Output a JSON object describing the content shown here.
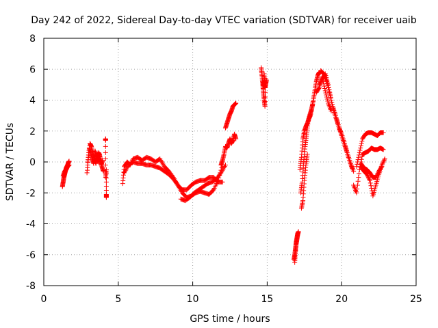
{
  "chart_data": {
    "type": "scatter",
    "title": "Day 242 of 2022, Sidereal Day-to-day VTEC variation (SDTVAR) for receiver uaib",
    "xlabel": "GPS time / hours",
    "ylabel": "SDTVAR / TECUs",
    "xlim": [
      0,
      25
    ],
    "ylim": [
      -8,
      8
    ],
    "xticks": [
      "0",
      "5",
      "10",
      "15",
      "20",
      "25"
    ],
    "yticks": [
      "8",
      "6",
      "4",
      "2",
      "0",
      "-2",
      "-4",
      "-6",
      "-8"
    ],
    "grid": true,
    "marker": "+",
    "series": [
      {
        "name": "SDTVAR",
        "color": "#ff0000",
        "segments": [
          {
            "x": [
              1.25,
              1.3,
              1.35,
              1.4,
              1.45,
              1.5,
              1.55,
              1.6,
              1.65,
              1.7
            ],
            "y": [
              -1.6,
              -1.3,
              -1.0,
              -0.8,
              -0.6,
              -0.4,
              -0.3,
              -0.2,
              -0.05,
              0.05
            ]
          },
          {
            "x": [
              1.3,
              1.4,
              1.5,
              1.6,
              1.7
            ],
            "y": [
              -0.9,
              -0.6,
              -0.5,
              -0.3,
              -0.2
            ]
          },
          {
            "x": [
              2.9,
              3.0,
              3.1,
              3.2,
              3.3,
              3.4,
              3.5,
              3.6,
              3.7,
              3.8,
              3.9,
              4.0
            ],
            "y": [
              -0.7,
              0.3,
              1.2,
              1.0,
              0.5,
              0.2,
              -0.1,
              0.4,
              0.6,
              0.2,
              -0.3,
              -0.6
            ]
          },
          {
            "x": [
              2.95,
              3.05,
              3.15,
              3.25,
              3.35,
              3.45,
              3.55,
              3.65,
              3.75,
              3.85,
              3.95
            ],
            "y": [
              0.0,
              0.9,
              0.6,
              0.2,
              -0.1,
              0.7,
              0.3,
              0.0,
              0.5,
              -0.2,
              0.1
            ]
          },
          {
            "x": [
              4.15,
              4.15,
              4.15,
              4.2,
              4.2,
              4.2
            ],
            "y": [
              1.5,
              1.4,
              -1.0,
              -0.5,
              -2.1,
              -2.3
            ]
          },
          {
            "x": [
              5.3,
              5.4,
              5.6,
              5.8,
              6.0,
              6.3,
              6.6,
              6.9,
              7.2,
              7.5,
              7.8,
              8.1,
              8.4,
              8.7,
              9.0,
              9.3,
              9.6,
              9.9,
              10.2,
              10.5,
              10.8,
              11.1,
              11.4,
              11.7,
              12.0
            ],
            "y": [
              -1.4,
              -0.3,
              0.0,
              -0.2,
              0.2,
              0.3,
              0.1,
              0.3,
              0.2,
              0.0,
              0.2,
              -0.3,
              -0.6,
              -1.0,
              -1.5,
              -1.8,
              -1.8,
              -1.5,
              -1.3,
              -1.2,
              -1.2,
              -1.0,
              -1.0,
              -1.3,
              -1.3
            ]
          },
          {
            "x": [
              5.4,
              5.7,
              6.0,
              6.3,
              6.6,
              6.9,
              7.2,
              7.5,
              7.8,
              8.1,
              8.4,
              8.7,
              9.0,
              9.3,
              9.6,
              9.9,
              10.2,
              10.5,
              10.8,
              11.1,
              11.4,
              11.7,
              12.0
            ],
            "y": [
              -0.7,
              -0.2,
              0.0,
              -0.1,
              -0.1,
              -0.2,
              -0.2,
              -0.3,
              -0.4,
              -0.6,
              -0.8,
              -1.1,
              -1.5,
              -2.0,
              -2.3,
              -2.2,
              -2.0,
              -1.9,
              -2.0,
              -2.1,
              -1.8,
              -1.2,
              -0.2
            ]
          },
          {
            "x": [
              9.2,
              9.5,
              9.8,
              10.1,
              10.4,
              10.7,
              11.0,
              11.3,
              11.6,
              11.9,
              12.2
            ],
            "y": [
              -2.4,
              -2.5,
              -2.3,
              -2.0,
              -1.8,
              -1.6,
              -1.4,
              -1.3,
              -1.1,
              -0.7,
              -0.2
            ]
          },
          {
            "x": [
              11.9,
              12.0,
              12.1,
              12.2,
              12.3,
              12.4,
              12.5,
              12.6,
              12.7,
              12.8,
              12.9
            ],
            "y": [
              -0.2,
              0.1,
              0.5,
              1.0,
              0.9,
              1.2,
              1.5,
              1.2,
              1.4,
              1.8,
              1.5
            ]
          },
          {
            "x": [
              12.2,
              12.3,
              12.4,
              12.5,
              12.6,
              12.7,
              12.8,
              12.9
            ],
            "y": [
              2.2,
              2.5,
              2.8,
              3.1,
              3.3,
              3.6,
              3.7,
              3.8
            ]
          },
          {
            "x": [
              14.6,
              14.65,
              14.7,
              14.75,
              14.8,
              14.85,
              14.9
            ],
            "y": [
              6.1,
              5.6,
              5.0,
              4.5,
              4.0,
              3.6,
              5.4
            ]
          },
          {
            "x": [
              14.7,
              14.75,
              14.8,
              14.85,
              14.9,
              14.95
            ],
            "y": [
              5.2,
              4.9,
              5.7,
              4.8,
              5.0,
              5.3
            ]
          },
          {
            "x": [
              16.8,
              16.85,
              16.9,
              16.95,
              17.0,
              17.05
            ],
            "y": [
              -6.3,
              -6.0,
              -5.6,
              -5.2,
              -4.9,
              -4.6
            ]
          },
          {
            "x": [
              16.85,
              16.9,
              16.95,
              17.0,
              17.05,
              17.1
            ],
            "y": [
              -6.5,
              -5.8,
              -5.3,
              -5.0,
              -4.7,
              -4.5
            ]
          },
          {
            "x": [
              17.2,
              17.3,
              17.4,
              17.5,
              17.6,
              17.7,
              17.8,
              17.9,
              18.0,
              18.1,
              18.2,
              18.3,
              18.4,
              18.5
            ],
            "y": [
              -0.5,
              0.3,
              1.5,
              2.0,
              2.3,
              2.5,
              2.8,
              3.0,
              3.5,
              4.0,
              4.6,
              5.2,
              5.6,
              5.8
            ]
          },
          {
            "x": [
              17.25,
              17.35,
              17.45,
              17.55,
              17.65,
              17.75,
              17.85,
              17.95,
              18.05
            ],
            "y": [
              -2.0,
              -1.3,
              0.0,
              1.0,
              1.8,
              2.6,
              3.0,
              3.3,
              3.7
            ]
          },
          {
            "x": [
              17.3,
              17.4,
              17.5,
              17.6,
              17.7
            ],
            "y": [
              -3.0,
              -2.5,
              -1.2,
              -0.2,
              0.5
            ]
          },
          {
            "x": [
              18.6,
              18.8,
              19.0,
              19.2,
              19.4,
              19.6,
              19.8,
              20.0,
              20.2,
              20.4,
              20.6,
              20.8
            ],
            "y": [
              5.9,
              5.7,
              5.2,
              4.4,
              3.6,
              3.0,
              2.3,
              1.8,
              1.2,
              0.5,
              -0.1,
              -0.6
            ]
          },
          {
            "x": [
              18.5,
              18.7,
              18.9,
              19.1,
              19.3,
              19.5,
              19.7,
              19.9,
              20.1,
              20.3,
              20.5,
              20.7
            ],
            "y": [
              5.0,
              5.4,
              5.7,
              5.0,
              4.0,
              3.2,
              2.6,
              2.0,
              1.4,
              0.8,
              0.2,
              -0.4
            ]
          },
          {
            "x": [
              18.3,
              18.5,
              18.7,
              18.9,
              19.1,
              19.3
            ],
            "y": [
              4.5,
              4.8,
              5.5,
              4.6,
              3.8,
              3.3
            ]
          },
          {
            "x": [
              20.8,
              21.0,
              21.2,
              21.4,
              21.6,
              21.8,
              22.0,
              22.2,
              22.4,
              22.6,
              22.8
            ],
            "y": [
              -1.5,
              -2.0,
              -0.5,
              0.5,
              0.6,
              0.7,
              0.9,
              0.8,
              0.8,
              0.9,
              0.8
            ]
          },
          {
            "x": [
              21.0,
              21.2,
              21.4,
              21.6,
              21.8,
              22.0,
              22.2,
              22.4,
              22.6,
              22.8
            ],
            "y": [
              -0.3,
              0.6,
              1.5,
              1.8,
              1.9,
              1.9,
              1.8,
              1.7,
              1.9,
              1.9
            ]
          },
          {
            "x": [
              21.3,
              21.5,
              21.7,
              21.9,
              22.1,
              22.3,
              22.5,
              22.7,
              22.9
            ],
            "y": [
              -0.3,
              -0.6,
              -0.8,
              -1.2,
              -2.2,
              -1.5,
              -0.8,
              -0.2,
              0.2
            ]
          },
          {
            "x": [
              21.3,
              21.5,
              21.7,
              21.9,
              22.1,
              22.3,
              22.5,
              22.7
            ],
            "y": [
              -0.1,
              -0.4,
              -0.5,
              -0.7,
              -1.0,
              -1.0,
              -0.6,
              -0.3
            ]
          }
        ]
      }
    ]
  }
}
